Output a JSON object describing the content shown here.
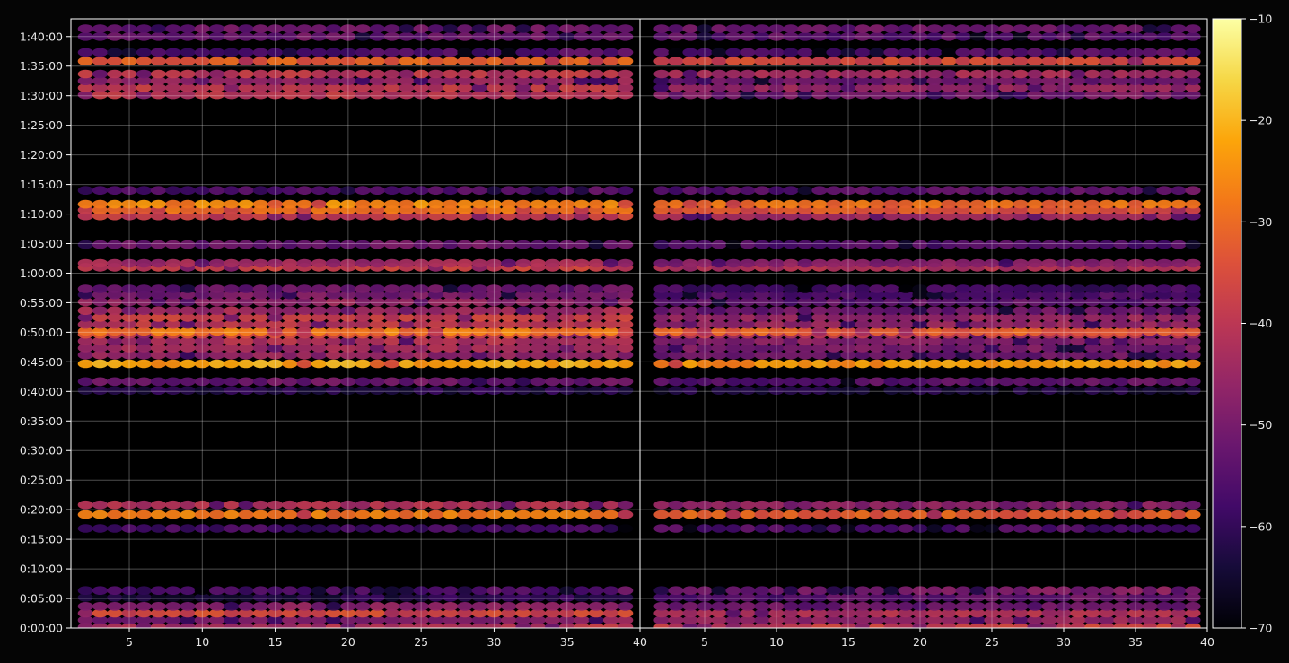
{
  "chart_data": {
    "type": "heatmap",
    "title": "",
    "xlabel": "",
    "ylabel": "",
    "grid": true,
    "background": "#000000",
    "colormap": "inferno",
    "panels": [
      {
        "x_range": [
          1,
          40
        ],
        "x_ticks": [
          5,
          10,
          15,
          20,
          25,
          30,
          35,
          40
        ],
        "x_tick_labels": [
          "5",
          "10",
          "15",
          "20",
          "25",
          "30",
          "35",
          "40"
        ]
      },
      {
        "x_range": [
          0.5,
          40
        ],
        "x_ticks": [
          5,
          10,
          15,
          20,
          25,
          30,
          35,
          40
        ],
        "x_tick_labels": [
          "5",
          "10",
          "15",
          "20",
          "25",
          "30",
          "35",
          "40"
        ]
      }
    ],
    "y_range_seconds": [
      0,
      6180
    ],
    "y_ticks_seconds": [
      0,
      300,
      600,
      900,
      1200,
      1500,
      1800,
      2100,
      2400,
      2700,
      3000,
      3300,
      3600,
      3900,
      4200,
      4500,
      4800,
      5100,
      5400,
      5700,
      6000
    ],
    "y_tick_labels": [
      "0:00:00",
      "0:05:00",
      "0:10:00",
      "0:15:00",
      "0:20:00",
      "0:25:00",
      "0:30:00",
      "0:35:00",
      "0:40:00",
      "0:45:00",
      "0:50:00",
      "0:55:00",
      "1:00:00",
      "1:05:00",
      "1:10:00",
      "1:15:00",
      "1:20:00",
      "1:25:00",
      "1:30:00",
      "1:35:00",
      "1:40:00"
    ],
    "colorbar": {
      "range": [
        -70,
        -10
      ],
      "ticks": [
        -70,
        -60,
        -50,
        -40,
        -30,
        -20,
        -10
      ],
      "tick_labels": [
        "−70",
        "−60",
        "−50",
        "−40",
        "−30",
        "−20",
        "−10"
      ]
    },
    "bands": [
      {
        "time": "0:00:10",
        "left": -42,
        "right": -38,
        "trend": 0.8
      },
      {
        "time": "0:01:20",
        "left": -48,
        "right": -46,
        "trend": 0.6
      },
      {
        "time": "0:02:30",
        "left": -36,
        "right": -42,
        "trend": 0.2
      },
      {
        "time": "0:03:40",
        "left": -48,
        "right": -52,
        "trend": 0.4
      },
      {
        "time": "0:05:10",
        "left": -62,
        "right": -54,
        "trend": 0.9
      },
      {
        "time": "0:06:20",
        "left": -56,
        "right": -50,
        "trend": 0.9
      },
      {
        "time": "0:16:50",
        "left": -58,
        "right": -56,
        "trend": 0.2
      },
      {
        "time": "0:19:10",
        "left": -28,
        "right": -32,
        "trend": 0.2
      },
      {
        "time": "0:20:50",
        "left": -42,
        "right": -48,
        "trend": 0.2
      },
      {
        "time": "0:40:10",
        "left": -62,
        "right": -64,
        "trend": 0.3
      },
      {
        "time": "0:41:40",
        "left": -52,
        "right": -54,
        "trend": 0.5
      },
      {
        "time": "0:44:40",
        "left": -22,
        "right": -24,
        "trend": 0.5
      },
      {
        "time": "0:46:10",
        "left": -46,
        "right": -52,
        "trend": 0.3
      },
      {
        "time": "0:47:20",
        "left": -44,
        "right": -50,
        "trend": 0.3
      },
      {
        "time": "0:48:30",
        "left": -42,
        "right": -48,
        "trend": 0.3
      },
      {
        "time": "0:49:40",
        "left": -36,
        "right": -40,
        "trend": 0.3
      },
      {
        "time": "0:50:10",
        "left": -28,
        "right": -32,
        "trend": 0.3
      },
      {
        "time": "0:51:20",
        "left": -40,
        "right": -46,
        "trend": 0.3
      },
      {
        "time": "0:52:30",
        "left": -38,
        "right": -46,
        "trend": 0.3
      },
      {
        "time": "0:53:40",
        "left": -44,
        "right": -52,
        "trend": 0.3
      },
      {
        "time": "0:55:10",
        "left": -46,
        "right": -54,
        "trend": 0.3
      },
      {
        "time": "0:56:20",
        "left": -50,
        "right": -56,
        "trend": 0.3
      },
      {
        "time": "0:57:20",
        "left": -52,
        "right": -58,
        "trend": 0.3
      },
      {
        "time": "1:01:00",
        "left": -38,
        "right": -42,
        "trend": 0.4
      },
      {
        "time": "1:01:40",
        "left": -44,
        "right": -48,
        "trend": 0.4
      },
      {
        "time": "1:04:50",
        "left": -52,
        "right": -56,
        "trend": 0.4
      },
      {
        "time": "1:09:40",
        "left": -38,
        "right": -44,
        "trend": 0.4
      },
      {
        "time": "1:10:40",
        "left": -30,
        "right": -34,
        "trend": 0.3
      },
      {
        "time": "1:11:40",
        "left": -26,
        "right": -30,
        "trend": 0.4
      },
      {
        "time": "1:14:00",
        "left": -56,
        "right": -54,
        "trend": 0.6
      },
      {
        "time": "1:30:10",
        "left": -40,
        "right": -50,
        "trend": 0.3
      },
      {
        "time": "1:31:20",
        "left": -40,
        "right": -46,
        "trend": 0.3
      },
      {
        "time": "1:32:30",
        "left": -46,
        "right": -52,
        "trend": 0.3
      },
      {
        "time": "1:33:40",
        "left": -40,
        "right": -44,
        "trend": 0.4
      },
      {
        "time": "1:35:50",
        "left": -32,
        "right": -36,
        "trend": 0.4
      },
      {
        "time": "1:37:20",
        "left": -56,
        "right": -56,
        "trend": 0.5
      },
      {
        "time": "1:40:00",
        "left": -52,
        "right": -54,
        "trend": 0.3
      },
      {
        "time": "1:41:20",
        "left": -52,
        "right": -52,
        "trend": 0.4
      }
    ]
  }
}
